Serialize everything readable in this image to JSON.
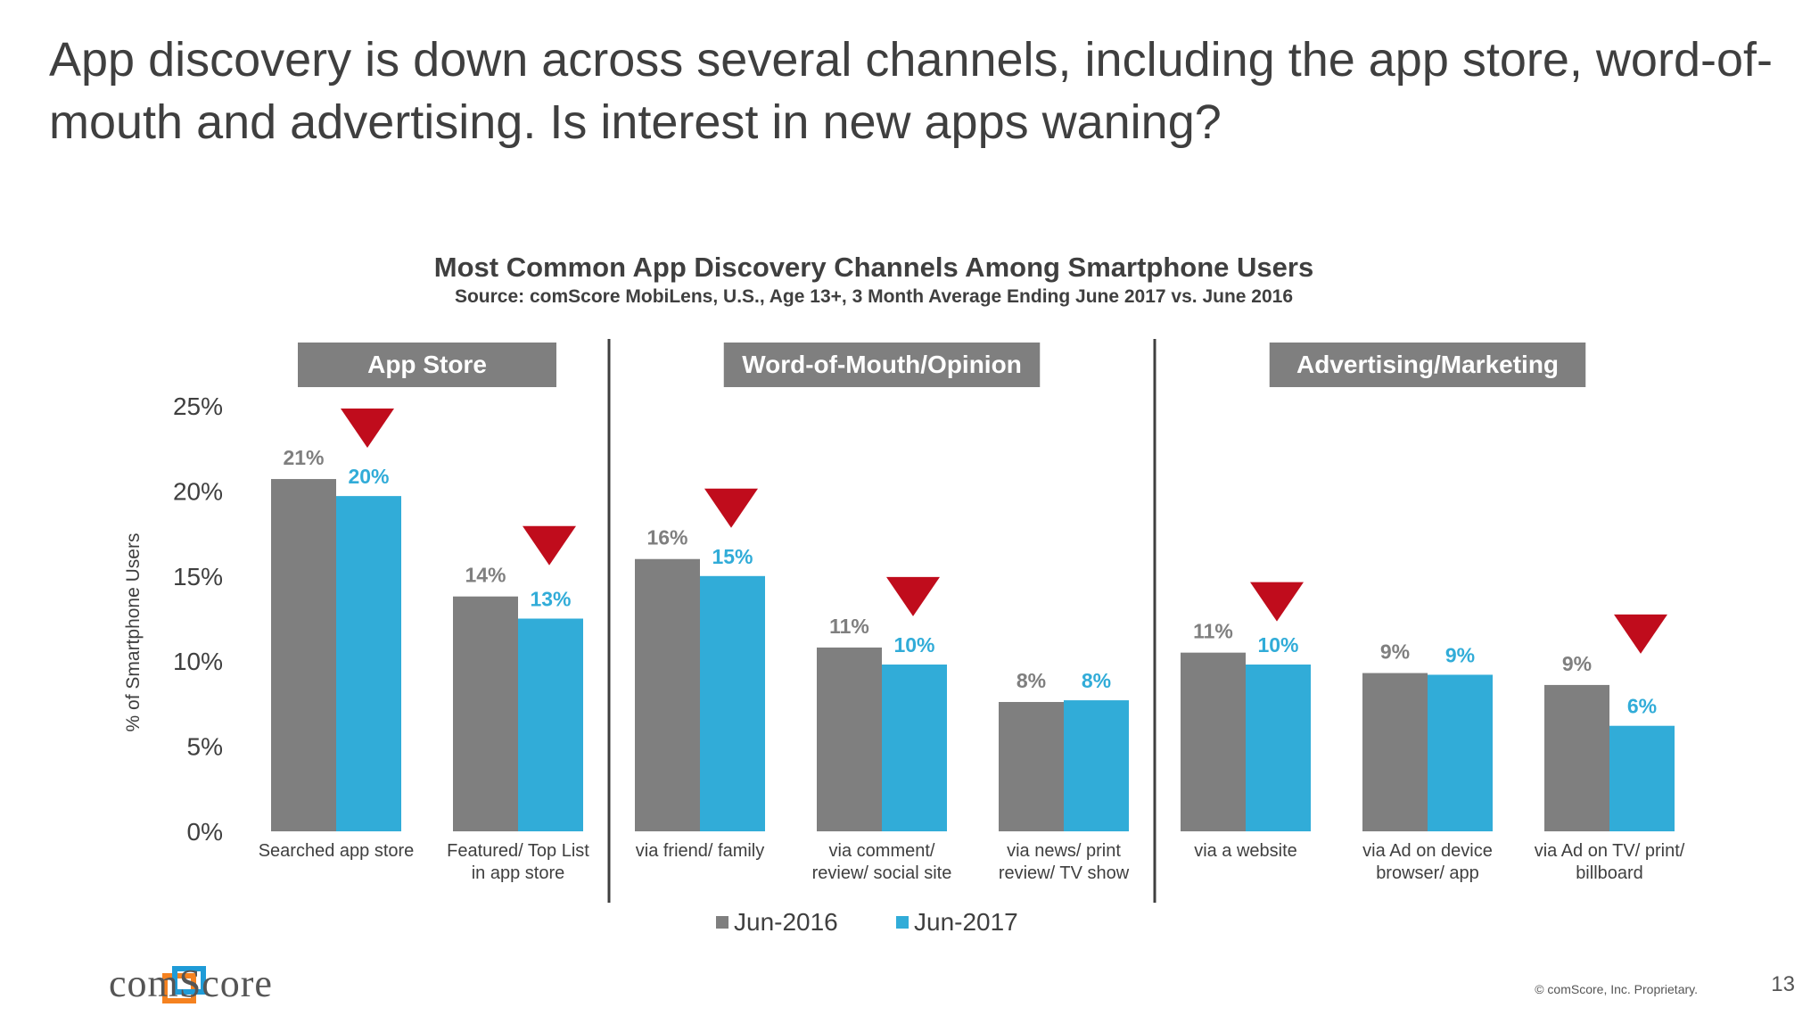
{
  "slide": {
    "headline": "App discovery is down across several channels, including the app store, word-of-mouth and advertising. Is interest in new apps waning?",
    "logo_text": "comScore",
    "copyright": "© comScore, Inc. Proprietary.",
    "page_number": "13"
  },
  "colors": {
    "series_2016": "#7f7f7f",
    "series_2017": "#31acd8",
    "group_header": "#7f7f7f",
    "down_arrow": "#c00c1c",
    "logo_orange": "#f58220",
    "logo_blue": "#1f9bd7"
  },
  "chart_data": {
    "type": "bar",
    "title": "Most Common App Discovery Channels Among Smartphone Users",
    "subtitle": "Source: comScore MobiLens, U.S., Age 13+, 3 Month Average Ending June 2017 vs. June 2016",
    "ylabel": "% of Smartphone Users",
    "ylim": [
      0,
      25
    ],
    "yticks": [
      0,
      5,
      10,
      15,
      20,
      25
    ],
    "ytick_labels": [
      "0%",
      "5%",
      "10%",
      "15%",
      "20%",
      "25%"
    ],
    "grid": false,
    "legend_position": "bottom",
    "groups": [
      {
        "label": "App Store",
        "category_indices": [
          0,
          1
        ]
      },
      {
        "label": "Word-of-Mouth/Opinion",
        "category_indices": [
          2,
          3,
          4
        ]
      },
      {
        "label": "Advertising/Marketing",
        "category_indices": [
          5,
          6,
          7
        ]
      }
    ],
    "categories": [
      [
        "Searched app store"
      ],
      [
        "Featured/ Top List",
        "in app store"
      ],
      [
        "via friend/ family"
      ],
      [
        "via comment/",
        "review/ social site"
      ],
      [
        "via news/ print",
        "review/ TV show"
      ],
      [
        "via a website"
      ],
      [
        "via Ad on device",
        "browser/ app"
      ],
      [
        "via Ad on TV/ print/",
        "billboard"
      ]
    ],
    "series": [
      {
        "name": "Jun-2016",
        "values": [
          20.7,
          13.8,
          16.0,
          10.8,
          7.6,
          10.5,
          9.3,
          8.6
        ],
        "labels": [
          "21%",
          "14%",
          "16%",
          "11%",
          "8%",
          "11%",
          "9%",
          "9%"
        ]
      },
      {
        "name": "Jun-2017",
        "values": [
          19.7,
          12.5,
          15.0,
          9.8,
          7.7,
          9.8,
          9.2,
          6.2
        ],
        "labels": [
          "20%",
          "13%",
          "15%",
          "10%",
          "8%",
          "10%",
          "9%",
          "6%"
        ]
      }
    ],
    "decline_markers": [
      true,
      true,
      true,
      true,
      false,
      true,
      false,
      true
    ]
  }
}
